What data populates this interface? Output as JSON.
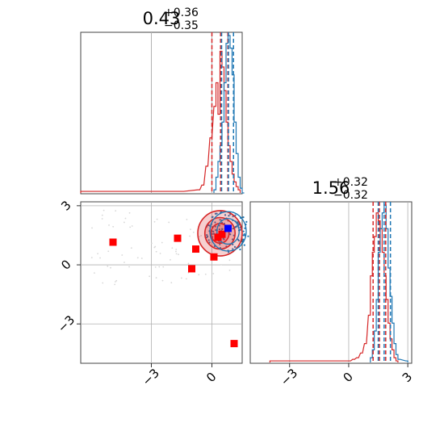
{
  "colors": {
    "red": "#d62728",
    "blue": "#1f77b4",
    "red_marker": "#ff0000",
    "blue_marker": "#0000ff",
    "grid": "#b0b0b0",
    "frame": "#444444"
  },
  "chart_data": [
    {
      "type": "histogram",
      "panel": "top-left",
      "title": {
        "median": "0.43",
        "upper": "+0.36",
        "lower": "−0.35"
      },
      "xlim": [
        -6.5,
        1.5
      ],
      "grid": true,
      "series": [
        {
          "color": "red",
          "quantiles": [
            0.0,
            0.43,
            0.79
          ],
          "bins": [
            [
              -6.5,
              0.01
            ],
            [
              -5.5,
              0.01
            ],
            [
              -4.5,
              0.01
            ],
            [
              -3.5,
              0.01
            ],
            [
              -2.5,
              0.01
            ],
            [
              -1.5,
              0.01
            ],
            [
              -0.7,
              0.02
            ],
            [
              -0.5,
              0.05
            ],
            [
              -0.3,
              0.17
            ],
            [
              -0.1,
              0.35
            ],
            [
              0.1,
              0.55
            ],
            [
              0.2,
              0.7
            ],
            [
              0.3,
              0.5
            ],
            [
              0.4,
              0.9
            ],
            [
              0.5,
              0.8
            ],
            [
              0.6,
              0.65
            ],
            [
              0.7,
              0.45
            ],
            [
              0.8,
              0.3
            ],
            [
              0.9,
              0.2
            ],
            [
              1.0,
              0.12
            ],
            [
              1.1,
              0.07
            ],
            [
              1.2,
              0.04
            ],
            [
              1.3,
              0.02
            ]
          ]
        },
        {
          "color": "blue",
          "quantiles": [
            0.48,
            0.82,
            1.07
          ],
          "bins": [
            [
              0.1,
              0.02
            ],
            [
              0.2,
              0.1
            ],
            [
              0.3,
              0.2
            ],
            [
              0.4,
              0.3
            ],
            [
              0.5,
              0.45
            ],
            [
              0.6,
              0.7
            ],
            [
              0.7,
              0.95
            ],
            [
              0.8,
              1.0
            ],
            [
              0.9,
              0.92
            ],
            [
              1.0,
              0.75
            ],
            [
              1.1,
              0.45
            ],
            [
              1.2,
              0.25
            ],
            [
              1.3,
              0.1
            ],
            [
              1.4,
              0.03
            ],
            [
              1.5,
              0.0
            ]
          ]
        }
      ]
    },
    {
      "type": "histogram",
      "panel": "bottom-right",
      "title": {
        "median": "1.56",
        "upper": "+0.32",
        "lower": "−0.32"
      },
      "xlim": [
        -5,
        3.2
      ],
      "xticks": [
        "−3",
        "0",
        "3"
      ],
      "xtick_values": [
        -3,
        0,
        3
      ],
      "grid": true,
      "series": [
        {
          "color": "red",
          "quantiles": [
            1.24,
            1.56,
            1.88
          ],
          "bins": [
            [
              -4.0,
              0.01
            ],
            [
              0.0,
              0.01
            ],
            [
              0.2,
              0.02
            ],
            [
              0.4,
              0.03
            ],
            [
              0.6,
              0.06
            ],
            [
              0.8,
              0.12
            ],
            [
              1.0,
              0.3
            ],
            [
              1.1,
              0.55
            ],
            [
              1.2,
              0.7
            ],
            [
              1.3,
              0.8
            ],
            [
              1.4,
              0.95
            ],
            [
              1.5,
              0.9
            ],
            [
              1.6,
              0.85
            ],
            [
              1.7,
              0.7
            ],
            [
              1.8,
              0.55
            ],
            [
              1.9,
              0.4
            ],
            [
              2.0,
              0.25
            ],
            [
              2.1,
              0.15
            ],
            [
              2.2,
              0.08
            ],
            [
              2.3,
              0.03
            ],
            [
              2.4,
              0.01
            ]
          ]
        },
        {
          "color": "blue",
          "quantiles": [
            1.5,
            1.8,
            2.12
          ],
          "bins": [
            [
              1.1,
              0.03
            ],
            [
              1.2,
              0.08
            ],
            [
              1.3,
              0.2
            ],
            [
              1.4,
              0.4
            ],
            [
              1.5,
              0.7
            ],
            [
              1.6,
              0.85
            ],
            [
              1.7,
              0.95
            ],
            [
              1.8,
              1.0
            ],
            [
              1.9,
              0.85
            ],
            [
              2.0,
              0.6
            ],
            [
              2.1,
              0.42
            ],
            [
              2.2,
              0.25
            ],
            [
              2.3,
              0.12
            ],
            [
              2.4,
              0.05
            ],
            [
              2.5,
              0.02
            ],
            [
              2.9,
              0.01
            ]
          ]
        }
      ]
    },
    {
      "type": "scatter",
      "panel": "bottom-left",
      "xlim": [
        -6.5,
        1.5
      ],
      "ylim": [
        -5,
        3.2
      ],
      "xticks": [
        "−3",
        "0"
      ],
      "xtick_values": [
        -3,
        0
      ],
      "yticks": [
        "3",
        "0",
        "−3"
      ],
      "ytick_values": [
        3,
        0,
        -3
      ],
      "grid": true,
      "contours": [
        {
          "color": "red",
          "cx": 0.4,
          "cy": 1.6,
          "levels": [
            [
              1.1,
              1.15
            ],
            [
              0.75,
              0.8
            ],
            [
              0.45,
              0.5
            ]
          ]
        },
        {
          "color": "blue",
          "cx": 0.8,
          "cy": 1.7,
          "levels": [
            [
              0.9,
              1.0
            ],
            [
              0.55,
              0.65
            ]
          ]
        }
      ],
      "markers": [
        {
          "color": "red_marker",
          "x": -4.9,
          "y": 1.15
        },
        {
          "color": "red_marker",
          "x": -1.7,
          "y": 1.35
        },
        {
          "color": "red_marker",
          "x": -0.8,
          "y": 0.8
        },
        {
          "color": "red_marker",
          "x": -1.0,
          "y": -0.2
        },
        {
          "color": "red_marker",
          "x": 0.1,
          "y": 0.4
        },
        {
          "color": "red_marker",
          "x": 0.3,
          "y": 1.4
        },
        {
          "color": "red_marker",
          "x": 0.5,
          "y": 1.55
        },
        {
          "color": "red_marker",
          "x": 1.1,
          "y": -4.0
        },
        {
          "color": "blue_marker",
          "x": 0.8,
          "y": 1.85
        }
      ]
    }
  ]
}
